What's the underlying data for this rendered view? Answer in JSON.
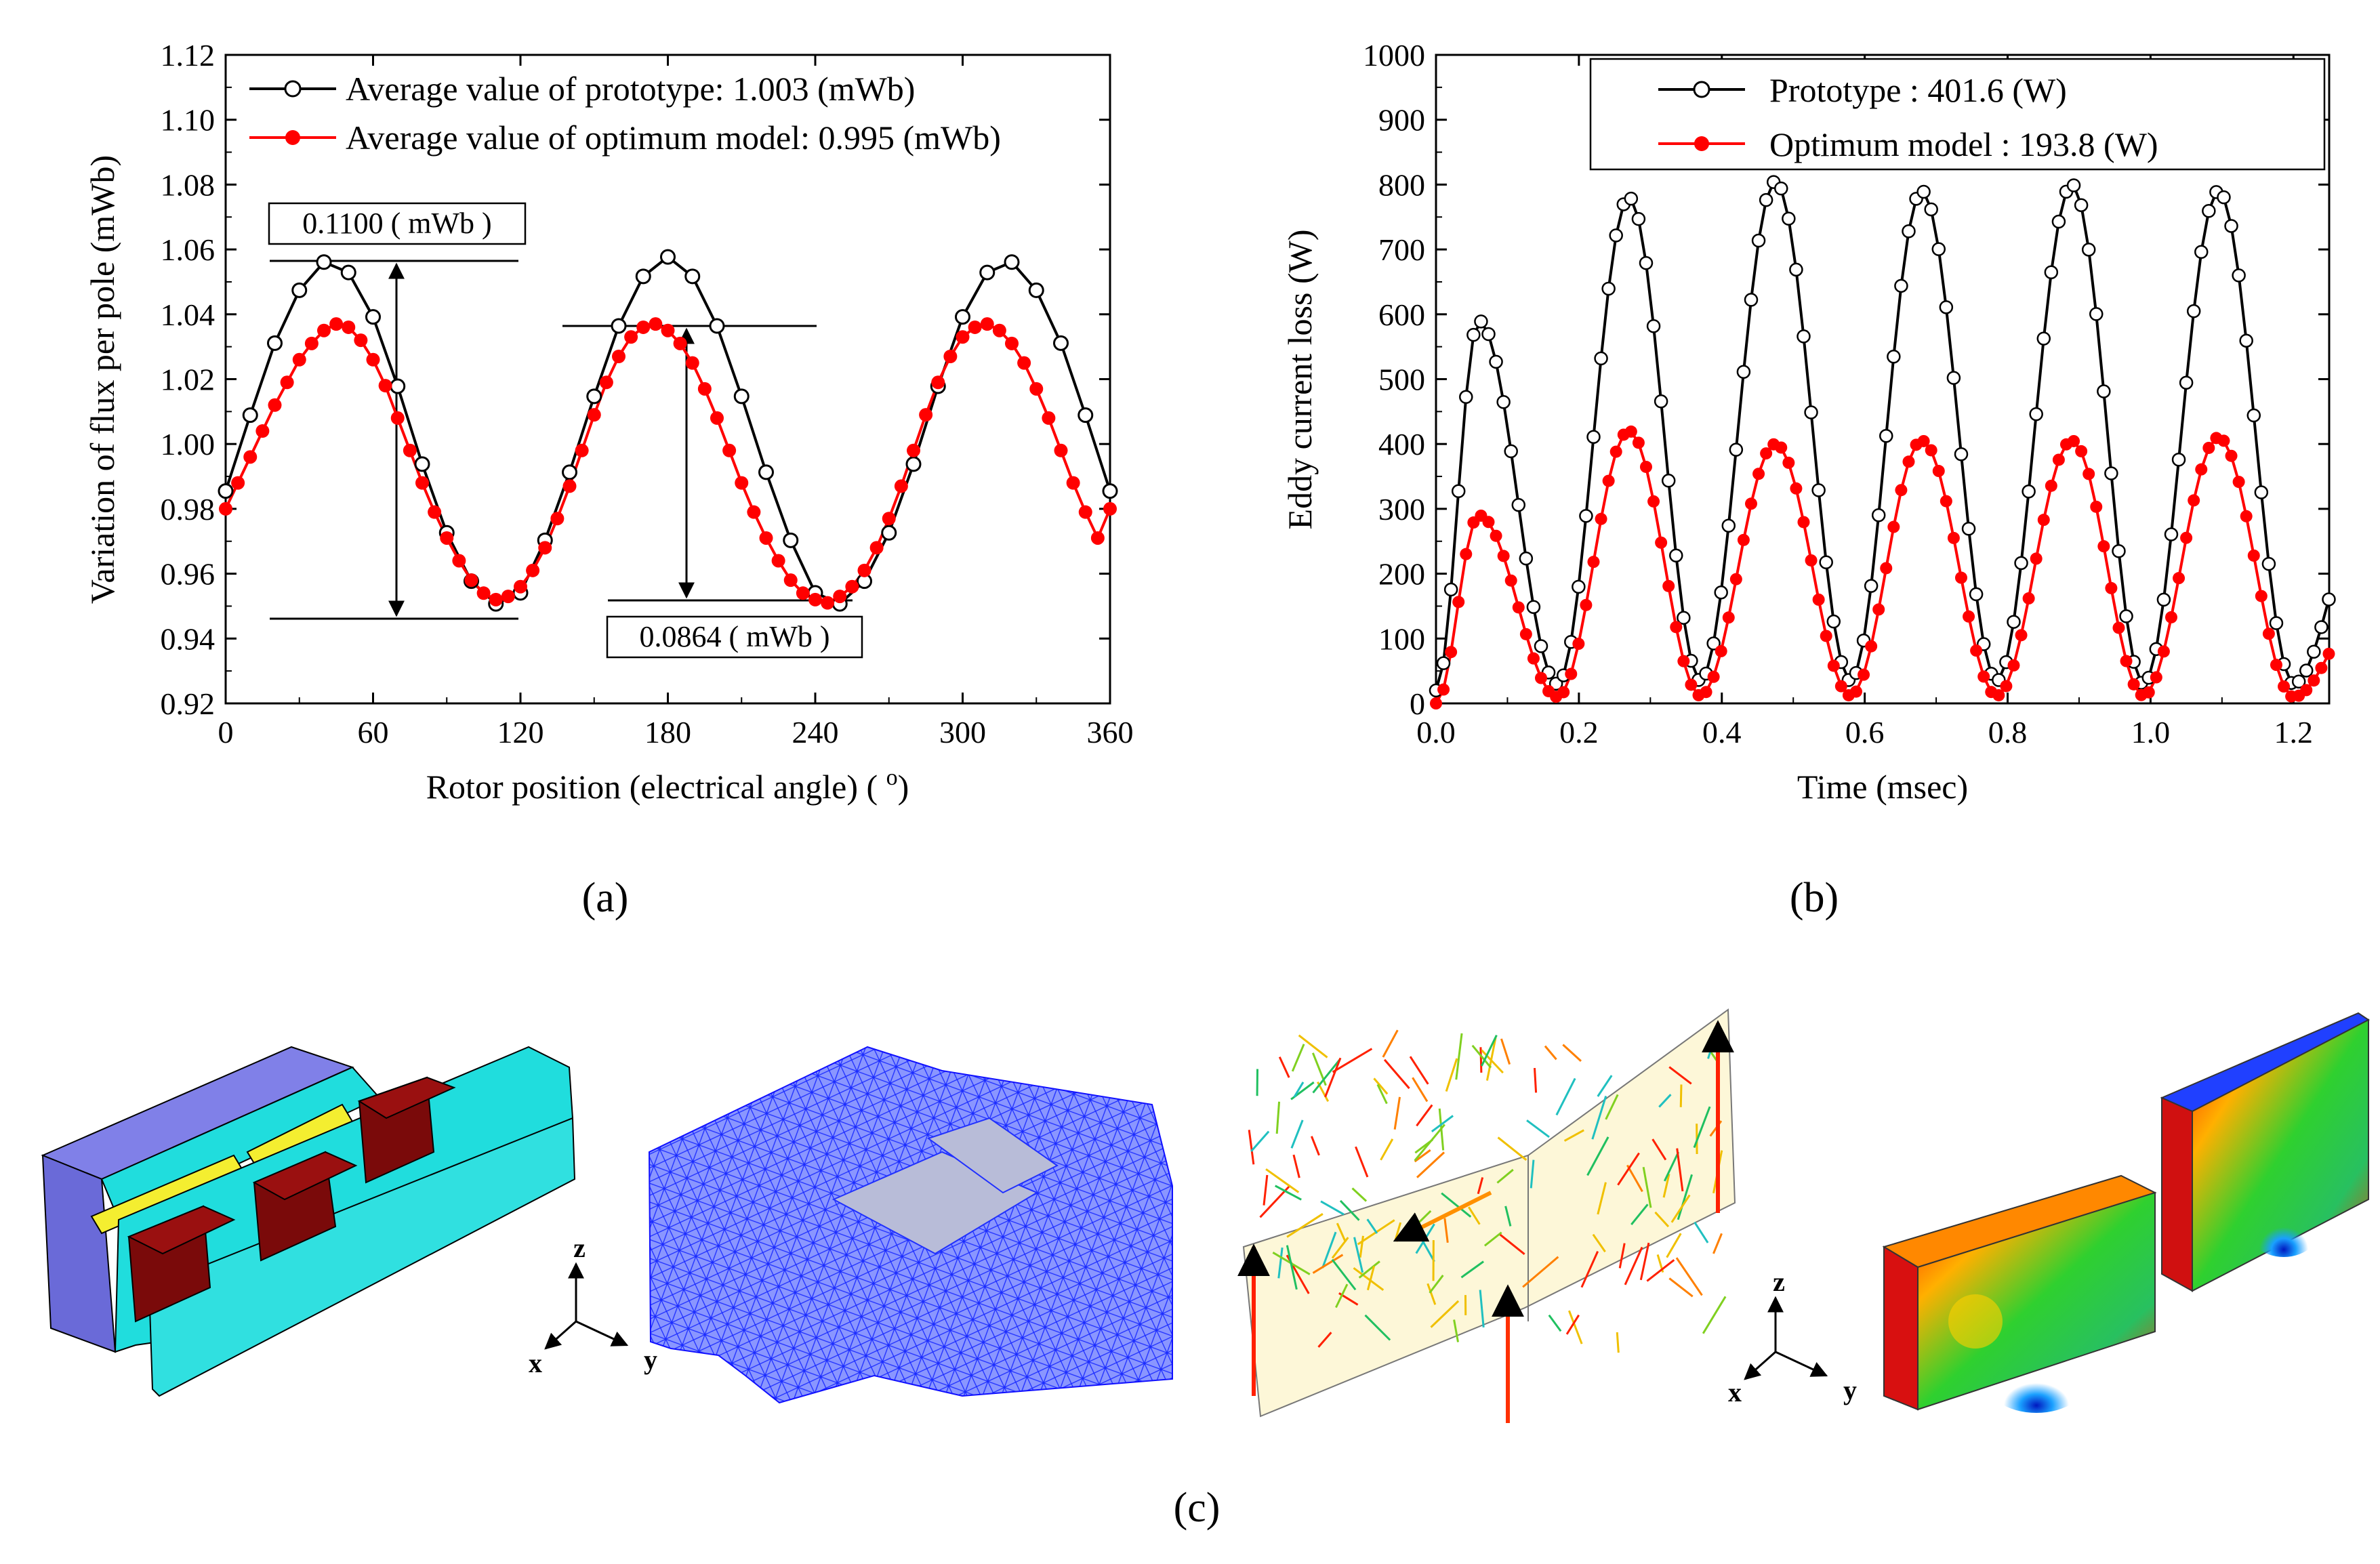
{
  "chart_data": [
    {
      "type": "line",
      "panel": "a",
      "caption": "(a)",
      "xlabel": "Rotor position (electrical angle) ( °)",
      "xlabel_pre": "Rotor position (electrical angle) ( ",
      "xlabel_deg": "o",
      "xlabel_post": ")",
      "ylabel": "Variation of  flux per pole (mWb)",
      "xlim": [
        0,
        360
      ],
      "ylim": [
        0.92,
        1.12
      ],
      "xticks": [
        "0",
        "60",
        "120",
        "180",
        "240",
        "300",
        "360"
      ],
      "yticks": [
        "0.92",
        "0.94",
        "0.96",
        "0.98",
        "1.00",
        "1.02",
        "1.04",
        "1.06",
        "1.08",
        "1.10",
        "1.12"
      ],
      "series": [
        {
          "name": "Average value of prototype: 1.003 (mWb)",
          "color": "#000000",
          "marker": "open-circle",
          "x": [
            0,
            10,
            20,
            30,
            40,
            50,
            60,
            70,
            80,
            90,
            100,
            110,
            120,
            130,
            140,
            150,
            160,
            170,
            180,
            190,
            200,
            210,
            220,
            230,
            240,
            250,
            260,
            270,
            280,
            290,
            300,
            310,
            320,
            330,
            340,
            350,
            360
          ],
          "y": [
            0.9855,
            1.0089,
            1.0311,
            1.0474,
            1.0561,
            1.0529,
            1.0392,
            1.0178,
            0.9938,
            0.9726,
            0.9577,
            0.9507,
            0.9541,
            0.9703,
            0.9913,
            1.0147,
            1.0364,
            1.0517,
            1.0577,
            1.0517,
            1.0364,
            1.0147,
            0.9913,
            0.9703,
            0.9541,
            0.9507,
            0.9577,
            0.9726,
            0.9938,
            1.0178,
            1.0392,
            1.0529,
            1.0561,
            1.0474,
            1.0311,
            1.0089,
            0.9855
          ]
        },
        {
          "name": "Average value of optimum model: 0.995 (mWb)",
          "color": "#ff0000",
          "marker": "filled-circle",
          "x": [
            0,
            5,
            10,
            15,
            20,
            25,
            30,
            35,
            40,
            45,
            50,
            55,
            60,
            65,
            70,
            75,
            80,
            85,
            90,
            95,
            100,
            105,
            110,
            115,
            120,
            125,
            130,
            135,
            140,
            145,
            150,
            155,
            160,
            165,
            170,
            175,
            180,
            185,
            190,
            195,
            200,
            205,
            210,
            215,
            220,
            225,
            230,
            235,
            240,
            245,
            250,
            255,
            260,
            265,
            270,
            275,
            280,
            285,
            290,
            295,
            300,
            305,
            310,
            315,
            320,
            325,
            330,
            335,
            340,
            345,
            350,
            355,
            360
          ],
          "y": [
            0.98,
            0.988,
            0.996,
            1.004,
            1.012,
            1.019,
            1.026,
            1.031,
            1.035,
            1.037,
            1.036,
            1.032,
            1.026,
            1.018,
            1.008,
            0.998,
            0.988,
            0.979,
            0.971,
            0.964,
            0.958,
            0.954,
            0.952,
            0.953,
            0.956,
            0.961,
            0.968,
            0.977,
            0.987,
            0.998,
            1.009,
            1.019,
            1.027,
            1.033,
            1.036,
            1.037,
            1.035,
            1.031,
            1.025,
            1.017,
            1.008,
            0.998,
            0.988,
            0.979,
            0.971,
            0.964,
            0.958,
            0.954,
            0.952,
            0.951,
            0.953,
            0.956,
            0.961,
            0.968,
            0.977,
            0.987,
            0.998,
            1.009,
            1.019,
            1.027,
            1.033,
            1.036,
            1.037,
            1.035,
            1.031,
            1.025,
            1.017,
            1.008,
            0.998,
            0.988,
            0.979,
            0.971,
            0.98
          ]
        }
      ],
      "annotations": {
        "top": "0.1100 ( mWb )",
        "bottom": "0.0864 ( mWb )"
      }
    },
    {
      "type": "line",
      "panel": "b",
      "caption": "(b)",
      "xlabel": "Time (msec)",
      "ylabel": "Eddy current loss (W)",
      "xlim": [
        0,
        1.25
      ],
      "ylim": [
        0,
        1000
      ],
      "xticks": [
        "0.0",
        "0.2",
        "0.4",
        "0.6",
        "0.8",
        "1.0",
        "1.2"
      ],
      "yticks": [
        "0",
        "100",
        "200",
        "300",
        "400",
        "500",
        "600",
        "700",
        "800",
        "900",
        "1000"
      ],
      "series": [
        {
          "name": "Prototype : 401.6 (W)",
          "color": "#000000",
          "marker": "open-circle",
          "peaks": [
            [
              0.06,
              590
            ],
            [
              0.27,
              780
            ],
            [
              0.475,
              805
            ],
            [
              0.68,
              790
            ],
            [
              0.89,
              800
            ],
            [
              1.095,
              790
            ]
          ],
          "minima": [
            [
              0.0,
              20
            ],
            [
              0.17,
              30
            ],
            [
              0.37,
              35
            ],
            [
              0.58,
              35
            ],
            [
              0.785,
              35
            ],
            [
              0.99,
              30
            ],
            [
              1.2,
              30
            ]
          ]
        },
        {
          "name": "Optimum model : 193.8 (W)",
          "color": "#ff0000",
          "marker": "filled-circle",
          "peaks": [
            [
              0.06,
              290
            ],
            [
              0.27,
              420
            ],
            [
              0.475,
              400
            ],
            [
              0.68,
              405
            ],
            [
              0.89,
              405
            ],
            [
              1.095,
              410
            ]
          ],
          "minima": [
            [
              0.0,
              0
            ],
            [
              0.17,
              10
            ],
            [
              0.37,
              12
            ],
            [
              0.58,
              12
            ],
            [
              0.785,
              12
            ],
            [
              0.99,
              12
            ],
            [
              1.2,
              10
            ]
          ]
        }
      ]
    }
  ],
  "panel_c": {
    "caption": "(c)",
    "axes_labels": {
      "z": "z",
      "x": "x",
      "y": "y"
    }
  }
}
